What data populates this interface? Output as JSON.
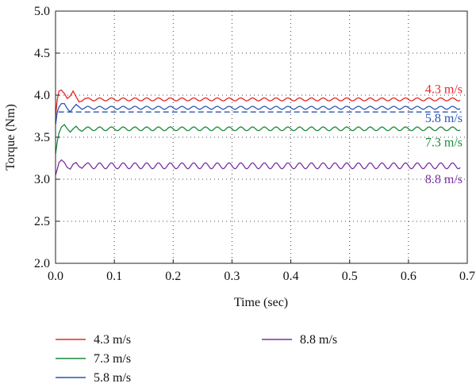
{
  "chart_data": {
    "type": "line",
    "title": "",
    "xlabel": "Time (sec)",
    "ylabel": "Torque (Nm)",
    "xlim": [
      0.0,
      0.7
    ],
    "ylim": [
      2.0,
      5.0
    ],
    "x_ticks": [
      "0.0",
      "0.1",
      "0.2",
      "0.3",
      "0.4",
      "0.5",
      "0.6",
      "0.7"
    ],
    "y_ticks": [
      "2.0",
      "2.5",
      "3.0",
      "3.5",
      "4.0",
      "4.5",
      "5.0"
    ],
    "grid": "dotted",
    "legend": "bottom",
    "series": [
      {
        "name": "4.3 m/s",
        "color": "#e8262a",
        "steady": 3.95,
        "ripple": 0.018,
        "ripple_period": 0.02,
        "x": [
          0.0,
          0.003,
          0.006,
          0.01,
          0.015,
          0.02,
          0.025,
          0.03,
          0.035,
          0.04,
          0.045,
          0.05
        ],
        "y": [
          3.75,
          3.95,
          4.05,
          4.06,
          4.02,
          3.96,
          3.99,
          4.05,
          3.98,
          3.92,
          3.93,
          3.96
        ],
        "label": "4.3 m/s"
      },
      {
        "name": "5.8 m/s",
        "color": "#2a55b8",
        "steady": 3.85,
        "ripple": 0.018,
        "ripple_period": 0.02,
        "dashed_level": 3.8,
        "x": [
          0.0,
          0.003,
          0.006,
          0.01,
          0.015,
          0.02,
          0.025,
          0.03,
          0.035,
          0.04,
          0.045,
          0.05
        ],
        "y": [
          3.65,
          3.8,
          3.86,
          3.9,
          3.9,
          3.84,
          3.8,
          3.85,
          3.89,
          3.86,
          3.83,
          3.85
        ],
        "label": "5.8 m/s"
      },
      {
        "name": "7.3 m/s",
        "color": "#1a8a3c",
        "steady": 3.6,
        "ripple": 0.022,
        "ripple_period": 0.02,
        "x": [
          0.0,
          0.003,
          0.006,
          0.01,
          0.015,
          0.02,
          0.025,
          0.03,
          0.035,
          0.04,
          0.045,
          0.05
        ],
        "y": [
          3.3,
          3.45,
          3.55,
          3.62,
          3.65,
          3.6,
          3.56,
          3.6,
          3.63,
          3.59,
          3.57,
          3.6
        ],
        "label": "7.3 m/s"
      },
      {
        "name": "8.8 m/s",
        "color": "#7b2fa0",
        "steady": 3.16,
        "ripple": 0.035,
        "ripple_period": 0.02,
        "x": [
          0.0,
          0.003,
          0.006,
          0.01,
          0.015,
          0.02,
          0.025,
          0.03,
          0.035,
          0.04,
          0.045,
          0.05
        ],
        "y": [
          3.05,
          3.12,
          3.2,
          3.23,
          3.2,
          3.14,
          3.12,
          3.18,
          3.2,
          3.15,
          3.13,
          3.17
        ],
        "label": "8.8 m/s"
      }
    ]
  },
  "legend_items": [
    {
      "label": "4.3 m/s",
      "color": "#e8262a"
    },
    {
      "label": "7.3 m/s",
      "color": "#1a8a3c"
    },
    {
      "label": "5.8 m/s",
      "color": "#2a55b8"
    },
    {
      "label": "8.8 m/s",
      "color": "#7b2fa0"
    }
  ]
}
